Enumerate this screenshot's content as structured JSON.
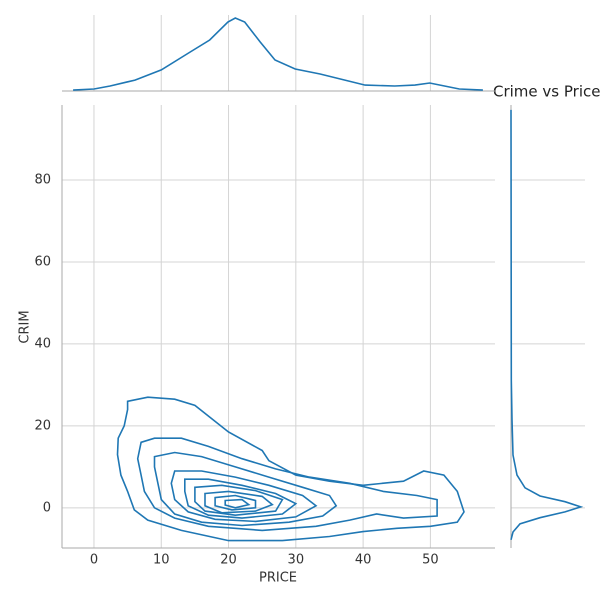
{
  "chart_data": {
    "type": "kde_joint",
    "title": "Crime vs Price",
    "xlabel": "PRICE",
    "ylabel": "CRIM",
    "xlim": [
      -4.75,
      59.6
    ],
    "ylim": [
      -9.8,
      98.3
    ],
    "xticks": [
      0,
      10,
      20,
      30,
      40,
      50
    ],
    "yticks": [
      0,
      20,
      40,
      60,
      80
    ],
    "grid": true,
    "color": "#1f77b4",
    "contours": [
      {
        "x": [
          5,
          8,
          12,
          15,
          20,
          25,
          26,
          30,
          35,
          40,
          46,
          49,
          52,
          54,
          55,
          54,
          50,
          45,
          40,
          35,
          28,
          20,
          13,
          8,
          6,
          5,
          4,
          3.5,
          3.6,
          4.5,
          5
        ],
        "y": [
          26,
          27,
          26.5,
          25,
          18.5,
          14,
          11.5,
          8,
          6.5,
          5.5,
          6.5,
          9,
          8,
          4,
          -1,
          -3.5,
          -4.5,
          -5,
          -5.8,
          -7,
          -8,
          -8,
          -5.5,
          -3,
          -0.5,
          4,
          8,
          13,
          17,
          20,
          24
        ]
      },
      {
        "x": [
          7,
          9,
          13,
          17,
          22,
          27,
          32,
          38,
          43,
          48,
          51,
          51,
          46,
          42,
          38,
          33,
          25,
          17,
          12,
          9,
          7.5,
          7,
          6.5
        ],
        "y": [
          16,
          17,
          17,
          15,
          12,
          9.5,
          7.5,
          6,
          4,
          3,
          2,
          -2,
          -2.5,
          -1.5,
          -3,
          -4.5,
          -5.5,
          -4.5,
          -2.5,
          0,
          4,
          8,
          12
        ]
      },
      {
        "x": [
          9,
          12,
          16,
          21,
          26,
          31,
          35,
          36,
          34,
          29,
          22,
          16,
          12,
          10,
          9.5,
          9
        ],
        "y": [
          12.5,
          13.5,
          12.5,
          10,
          7.5,
          5,
          3,
          0.5,
          -2,
          -3.5,
          -4.3,
          -3.5,
          -1.5,
          2,
          6,
          10
        ]
      },
      {
        "x": [
          12,
          16,
          21,
          26,
          31,
          33,
          30,
          24,
          18,
          14,
          12,
          11.5
        ],
        "y": [
          9,
          9,
          7.5,
          5.5,
          3,
          0.5,
          -2.2,
          -3.3,
          -2.8,
          -1,
          2,
          6
        ]
      },
      {
        "x": [
          13.5,
          17,
          22,
          27,
          30,
          28,
          22,
          17,
          14,
          13.5
        ],
        "y": [
          7,
          7,
          5.5,
          3.5,
          1,
          -1.5,
          -2.5,
          -1.8,
          0.5,
          4
        ]
      },
      {
        "x": [
          15,
          19,
          24,
          28,
          27,
          21,
          16.5,
          15
        ],
        "y": [
          5,
          5.5,
          4.2,
          2,
          -0.8,
          -1.8,
          -0.8,
          1.5
        ]
      },
      {
        "x": [
          16.5,
          20,
          25,
          26.5,
          24,
          19,
          16.5
        ],
        "y": [
          3.5,
          4,
          2.8,
          0.8,
          -0.8,
          -1.2,
          0.5
        ]
      },
      {
        "x": [
          18,
          21,
          24,
          24,
          20.5,
          18
        ],
        "y": [
          2.5,
          3,
          1.8,
          0,
          -0.5,
          0.5
        ]
      },
      {
        "x": [
          19.5,
          22,
          23,
          21,
          19.5
        ],
        "y": [
          1.8,
          2,
          0.8,
          0,
          0.7
        ]
      }
    ],
    "marginal_x": {
      "density_lim": [
        0,
        0.06
      ],
      "x": [
        -3.1,
        0,
        2.4,
        6.1,
        10,
        14.3,
        17.2,
        19.9,
        21,
        22.4,
        24.7,
        26.9,
        29.9,
        33.6,
        37.3,
        40.3,
        44.7,
        47.7,
        49.9,
        52.1,
        54.3,
        57.8
      ],
      "density": [
        0.0007,
        0.0015,
        0.0037,
        0.0081,
        0.0156,
        0.0289,
        0.0378,
        0.0511,
        0.0541,
        0.0511,
        0.0363,
        0.023,
        0.0163,
        0.0126,
        0.0081,
        0.0044,
        0.0037,
        0.0044,
        0.0059,
        0.0037,
        0.0015,
        0.0007
      ]
    },
    "marginal_y": {
      "density_lim": [
        0,
        0.12
      ],
      "y": [
        -7.8,
        -5.9,
        -3.9,
        -2.4,
        -1.0,
        0.24,
        1.5,
        2.9,
        4.9,
        8.0,
        12.9,
        21.5,
        31.2,
        97.1
      ],
      "density": [
        0,
        0.0032,
        0.0146,
        0.047,
        0.0876,
        0.113,
        0.0876,
        0.047,
        0.0227,
        0.0097,
        0.0032,
        0.0016,
        0.0005,
        0
      ]
    }
  }
}
